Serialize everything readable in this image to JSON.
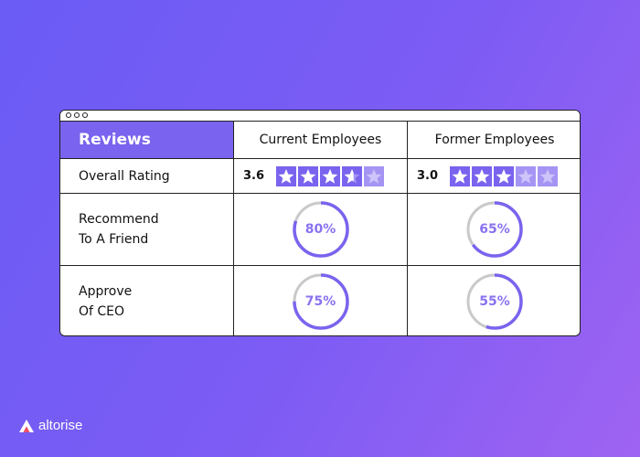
{
  "table": {
    "header": {
      "title": "Reviews",
      "columns": [
        "Current Employees",
        "Former Employees"
      ]
    },
    "rows": {
      "overall_rating": {
        "label": "Overall Rating",
        "current": {
          "value": "3.6",
          "stars": 3.6
        },
        "former": {
          "value": "3.0",
          "stars": 3.0
        }
      },
      "recommend": {
        "label_line1": "Recommend",
        "label_line2": "To A Friend",
        "current": {
          "label": "80%",
          "percent": 80
        },
        "former": {
          "label": "65%",
          "percent": 65
        }
      },
      "approve_ceo": {
        "label_line1": "Approve",
        "label_line2": "Of CEO",
        "current": {
          "label": "75%",
          "percent": 75
        },
        "former": {
          "label": "55%",
          "percent": 55
        }
      }
    },
    "star_max": 5
  },
  "brand": {
    "name": "altorise",
    "icon": "altorise-logo-icon"
  },
  "colors": {
    "accent": "#7a63ee",
    "star_empty": "#a594f4",
    "ring_track": "#c9c9c9",
    "ring_fill": "#7a63ee",
    "percent_text": "#8a72f0"
  }
}
